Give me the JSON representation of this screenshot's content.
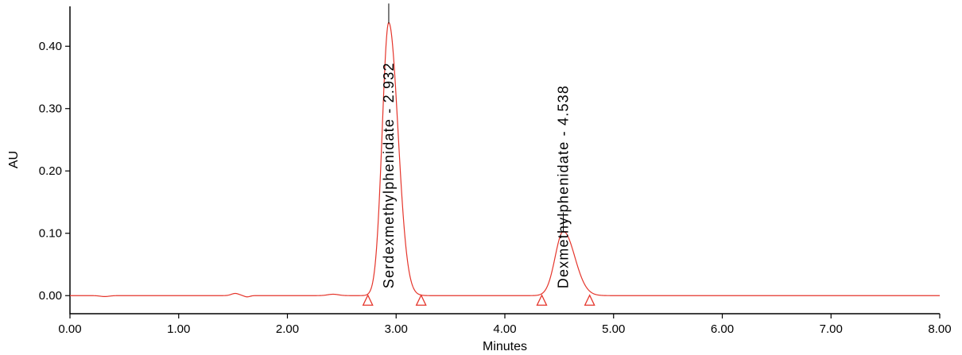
{
  "chart_data": {
    "type": "line",
    "title": "",
    "xlabel": "Minutes",
    "ylabel": "AU",
    "xlim": [
      0.0,
      8.0
    ],
    "ylim": [
      -0.029,
      0.464
    ],
    "grid": false,
    "legend": false,
    "axis_color": "#000000",
    "trace_color": "#e5352b",
    "background_color": "#ffffff",
    "x_ticks": [
      {
        "value": 0.0,
        "label": "0.00"
      },
      {
        "value": 1.0,
        "label": "1.00"
      },
      {
        "value": 2.0,
        "label": "2.00"
      },
      {
        "value": 3.0,
        "label": "3.00"
      },
      {
        "value": 4.0,
        "label": "4.00"
      },
      {
        "value": 5.0,
        "label": "5.00"
      },
      {
        "value": 6.0,
        "label": "6.00"
      },
      {
        "value": 7.0,
        "label": "7.00"
      },
      {
        "value": 8.0,
        "label": "8.00"
      }
    ],
    "y_ticks": [
      {
        "value": 0.0,
        "label": "0.00"
      },
      {
        "value": 0.1,
        "label": "0.10"
      },
      {
        "value": 0.2,
        "label": "0.20"
      },
      {
        "value": 0.3,
        "label": "0.30"
      },
      {
        "value": 0.4,
        "label": "0.40"
      }
    ],
    "baseline_au": 0.0,
    "peaks": [
      {
        "name": "Serdexmethylphenidate",
        "retention_time": 2.932,
        "label": "Serdexmethylphenidate - 2.932",
        "height_au": 0.438,
        "sigma_left": 0.06,
        "sigma_right": 0.085,
        "integration_start": 2.74,
        "integration_end": 3.23
      },
      {
        "name": "Dexmethylphenidate",
        "retention_time": 4.538,
        "label": "Dexmethylphenidate - 4.538",
        "height_au": 0.103,
        "sigma_left": 0.075,
        "sigma_right": 0.105,
        "integration_start": 4.34,
        "integration_end": 4.78
      }
    ],
    "noise_bumps": [
      {
        "x": 0.32,
        "amp": -0.0015,
        "sigma": 0.04
      },
      {
        "x": 1.52,
        "amp": 0.0035,
        "sigma": 0.035
      },
      {
        "x": 1.63,
        "amp": -0.002,
        "sigma": 0.025
      },
      {
        "x": 2.42,
        "amp": 0.0022,
        "sigma": 0.05
      }
    ]
  }
}
